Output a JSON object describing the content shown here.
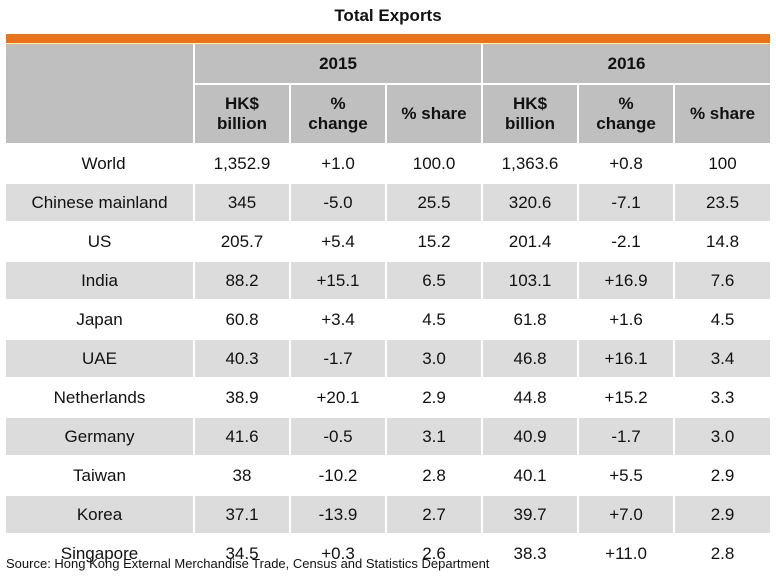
{
  "title": "Total Exports",
  "accent_color": "#e8731a",
  "header": {
    "years": [
      "2015",
      "2016"
    ],
    "columns": [
      "HK$\nbillion",
      "%\nchange",
      "% share",
      "HK$\nbillion",
      "%\nchange",
      "% share"
    ]
  },
  "rows": [
    {
      "label": "World",
      "cells": [
        "1,352.9",
        "+1.0",
        "100.0",
        "1,363.6",
        "+0.8",
        "100"
      ]
    },
    {
      "label": "Chinese mainland",
      "cells": [
        "345",
        "-5.0",
        "25.5",
        "320.6",
        "-7.1",
        "23.5"
      ]
    },
    {
      "label": "US",
      "cells": [
        "205.7",
        "+5.4",
        "15.2",
        "201.4",
        "-2.1",
        "14.8"
      ]
    },
    {
      "label": "India",
      "cells": [
        "88.2",
        "+15.1",
        "6.5",
        "103.1",
        "+16.9",
        "7.6"
      ]
    },
    {
      "label": "Japan",
      "cells": [
        "60.8",
        "+3.4",
        "4.5",
        "61.8",
        "+1.6",
        "4.5"
      ]
    },
    {
      "label": "UAE",
      "cells": [
        "40.3",
        "-1.7",
        "3.0",
        "46.8",
        "+16.1",
        "3.4"
      ]
    },
    {
      "label": "Netherlands",
      "cells": [
        "38.9",
        "+20.1",
        "2.9",
        "44.8",
        "+15.2",
        "3.3"
      ]
    },
    {
      "label": "Germany",
      "cells": [
        "41.6",
        "-0.5",
        "3.1",
        "40.9",
        "-1.7",
        "3.0"
      ]
    },
    {
      "label": "Taiwan",
      "cells": [
        "38",
        "-10.2",
        "2.8",
        "40.1",
        "+5.5",
        "2.9"
      ]
    },
    {
      "label": "Korea",
      "cells": [
        "37.1",
        "-13.9",
        "2.7",
        "39.7",
        "+7.0",
        "2.9"
      ]
    },
    {
      "label": "Singapore",
      "cells": [
        "34.5",
        "+0.3",
        "2.6",
        "38.3",
        "+11.0",
        "2.8"
      ]
    }
  ],
  "source": "Source: Hong Kong External Merchandise Trade, Census and Statistics Department",
  "chart_data": {
    "type": "table",
    "title": "Total Exports",
    "column_groups": [
      "2015",
      "2016"
    ],
    "columns": [
      "HK$ billion",
      "% change",
      "% share"
    ],
    "rows": [
      {
        "label": "World",
        "2015": [
          1352.9,
          1.0,
          100.0
        ],
        "2016": [
          1363.6,
          0.8,
          100
        ]
      },
      {
        "label": "Chinese mainland",
        "2015": [
          345,
          -5.0,
          25.5
        ],
        "2016": [
          320.6,
          -7.1,
          23.5
        ]
      },
      {
        "label": "US",
        "2015": [
          205.7,
          5.4,
          15.2
        ],
        "2016": [
          201.4,
          -2.1,
          14.8
        ]
      },
      {
        "label": "India",
        "2015": [
          88.2,
          15.1,
          6.5
        ],
        "2016": [
          103.1,
          16.9,
          7.6
        ]
      },
      {
        "label": "Japan",
        "2015": [
          60.8,
          3.4,
          4.5
        ],
        "2016": [
          61.8,
          1.6,
          4.5
        ]
      },
      {
        "label": "UAE",
        "2015": [
          40.3,
          -1.7,
          3.0
        ],
        "2016": [
          46.8,
          16.1,
          3.4
        ]
      },
      {
        "label": "Netherlands",
        "2015": [
          38.9,
          20.1,
          2.9
        ],
        "2016": [
          44.8,
          15.2,
          3.3
        ]
      },
      {
        "label": "Germany",
        "2015": [
          41.6,
          -0.5,
          3.1
        ],
        "2016": [
          40.9,
          -1.7,
          3.0
        ]
      },
      {
        "label": "Taiwan",
        "2015": [
          38,
          -10.2,
          2.8
        ],
        "2016": [
          40.1,
          5.5,
          2.9
        ]
      },
      {
        "label": "Korea",
        "2015": [
          37.1,
          -13.9,
          2.7
        ],
        "2016": [
          39.7,
          7.0,
          2.9
        ]
      },
      {
        "label": "Singapore",
        "2015": [
          34.5,
          0.3,
          2.6
        ],
        "2016": [
          38.3,
          11.0,
          2.8
        ]
      }
    ]
  }
}
